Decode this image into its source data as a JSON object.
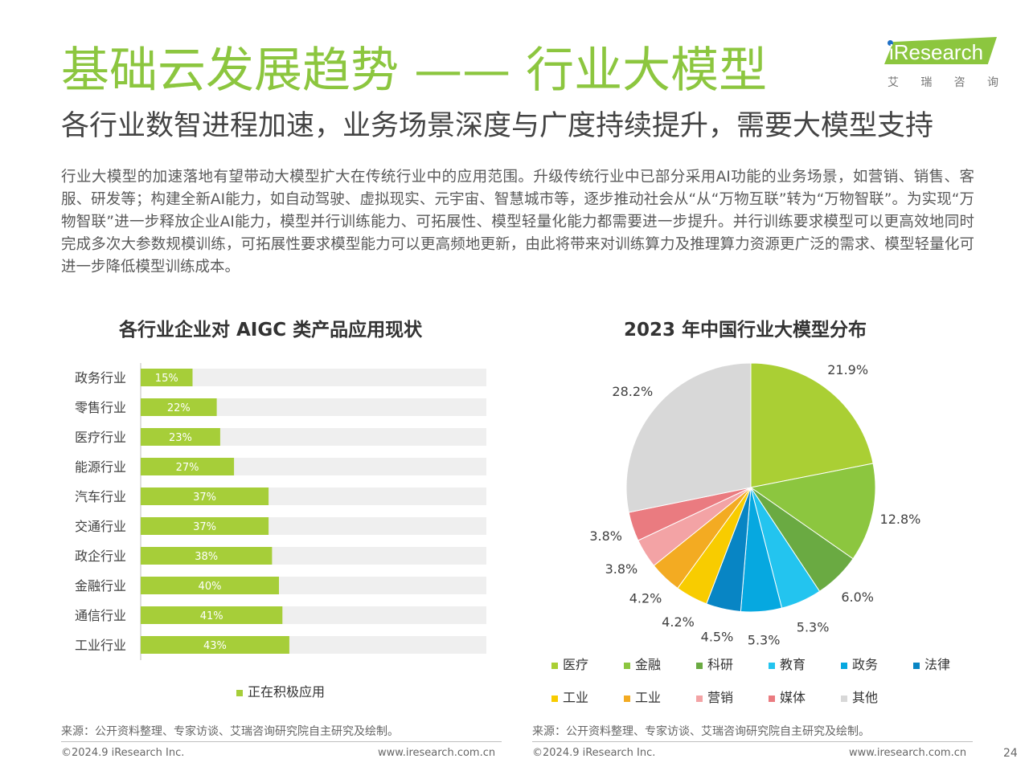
{
  "header": {
    "title": "基础云发展趋势 —— 行业大模型",
    "subtitle": "各行业数智进程加速，业务场景深度与广度持续提升，需要大模型支持",
    "body": "行业大模型的加速落地有望带动大模型扩大在传统行业中的应用范围。升级传统行业中已部分采用AI功能的业务场景，如营销、销售、客服、研发等；构建全新AI能力，如自动驾驶、虚拟现实、元宇宙、智慧城市等，逐步推动社会从“从“万物互联”转为“万物智联”。为实现“万物智联”进一步释放企业AI能力，模型并行训练能力、可拓展性、模型轻量化能力都需要进一步提升。并行训练要求模型可以更高效地同时完成多次大参数规模训练，可拓展性要求模型能力可以更高频地更新，由此将带来对训练算力及推理算力资源更广泛的需求、模型轻量化可进一步降低模型训练成本。"
  },
  "logo": {
    "text": "iResearch",
    "sub": [
      "艾",
      "瑞",
      "咨",
      "询"
    ]
  },
  "colors": {
    "accent": "#8cc63f",
    "bar": "#a6ce39",
    "track": "#efefef"
  },
  "chart_data": [
    {
      "type": "bar",
      "orientation": "horizontal",
      "title": "各行业企业对 AIGC 类产品应用现状",
      "categories": [
        "政务行业",
        "零售行业",
        "医疗行业",
        "能源行业",
        "汽车行业",
        "交通行业",
        "政企行业",
        "金融行业",
        "通信行业",
        "工业行业"
      ],
      "series": [
        {
          "name": "正在积极应用",
          "values": [
            15,
            22,
            23,
            27,
            37,
            37,
            38,
            40,
            41,
            43
          ],
          "labels": [
            "15%",
            "22%",
            "23%",
            "27%",
            "37%",
            "37%",
            "38%",
            "40%",
            "41%",
            "43%"
          ]
        }
      ],
      "xlim": [
        0,
        100
      ],
      "legend": "bottom"
    },
    {
      "type": "pie",
      "title": "2023 年中国行业大模型分布",
      "slices": [
        {
          "name": "医疗",
          "value": 21.9,
          "label": "21.9%",
          "color": "#aacf34"
        },
        {
          "name": "金融",
          "value": 12.8,
          "label": "12.8%",
          "color": "#8cc63f"
        },
        {
          "name": "科研",
          "value": 6.0,
          "label": "6.0%",
          "color": "#6aaa42"
        },
        {
          "name": "教育",
          "value": 5.3,
          "label": "5.3%",
          "color": "#23c4ef"
        },
        {
          "name": "政务",
          "value": 5.3,
          "label": "5.3%",
          "color": "#06a8e0"
        },
        {
          "name": "法律",
          "value": 4.5,
          "label": "4.5%",
          "color": "#0885c4"
        },
        {
          "name": "工业",
          "value": 4.2,
          "label": "4.2%",
          "color": "#f8cc00"
        },
        {
          "name": "工业",
          "value": 4.2,
          "label": "4.2%",
          "color": "#f3ab22"
        },
        {
          "name": "营销",
          "value": 3.8,
          "label": "3.8%",
          "color": "#f3a3a5"
        },
        {
          "name": "媒体",
          "value": 3.8,
          "label": "3.8%",
          "color": "#ea7b80"
        },
        {
          "name": "其他",
          "value": 28.2,
          "label": "28.2%",
          "color": "#d8d8d8"
        }
      ],
      "legend": "bottom"
    }
  ],
  "footer": {
    "source_left": "来源：公开资料整理、专家访谈、艾瑞咨询研究院自主研究及绘制。",
    "source_right": "来源：公开资料整理、专家访谈、艾瑞咨询研究院自主研究及绘制。",
    "copyright_left": "©2024.9 iResearch Inc.",
    "url_left": "www.iresearch.com.cn",
    "copyright_right": "©2024.9 iResearch Inc.",
    "url_right": "www.iresearch.com.cn",
    "page": "24"
  }
}
